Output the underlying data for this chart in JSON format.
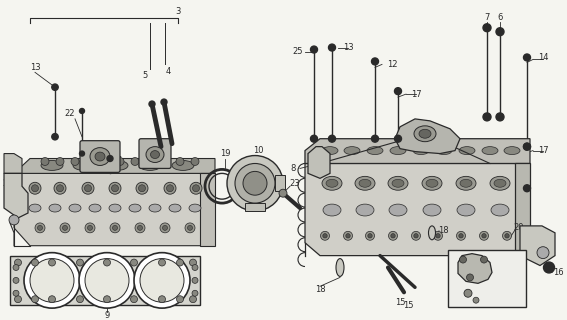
{
  "bg_color": "#f5f5f0",
  "line_color": "#2a2a2a",
  "figsize": [
    5.67,
    3.2
  ],
  "dpi": 100,
  "font_size": 6.0,
  "gray_fill": "#c8c8c0",
  "dark_gray": "#888880",
  "mid_gray": "#aaaaaa",
  "light_gray": "#ddddd8",
  "white": "#ffffff"
}
